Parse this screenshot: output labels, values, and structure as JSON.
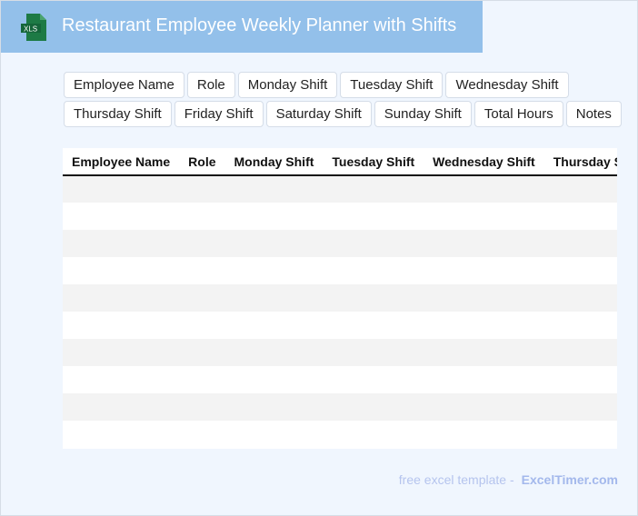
{
  "header": {
    "title": "Restaurant Employee Weekly Planner with Shifts",
    "logo_text": "XLS",
    "logo_color": "#1d7a45",
    "background": "#93c0ea"
  },
  "chips": {
    "row1": [
      "Employee Name",
      "Role",
      "Monday Shift",
      "Tuesday Shift",
      "Wednesday Shift"
    ],
    "row2": [
      "Thursday Shift",
      "Friday Shift",
      "Saturday Shift",
      "Sunday Shift",
      "Total Hours",
      "Notes"
    ]
  },
  "table": {
    "columns": [
      "Employee Name",
      "Role",
      "Monday Shift",
      "Tuesday Shift",
      "Wednesday Shift",
      "Thursday Shift"
    ],
    "row_count": 10
  },
  "footer": {
    "text": "free excel template -",
    "brand": "ExcelTimer.com"
  }
}
